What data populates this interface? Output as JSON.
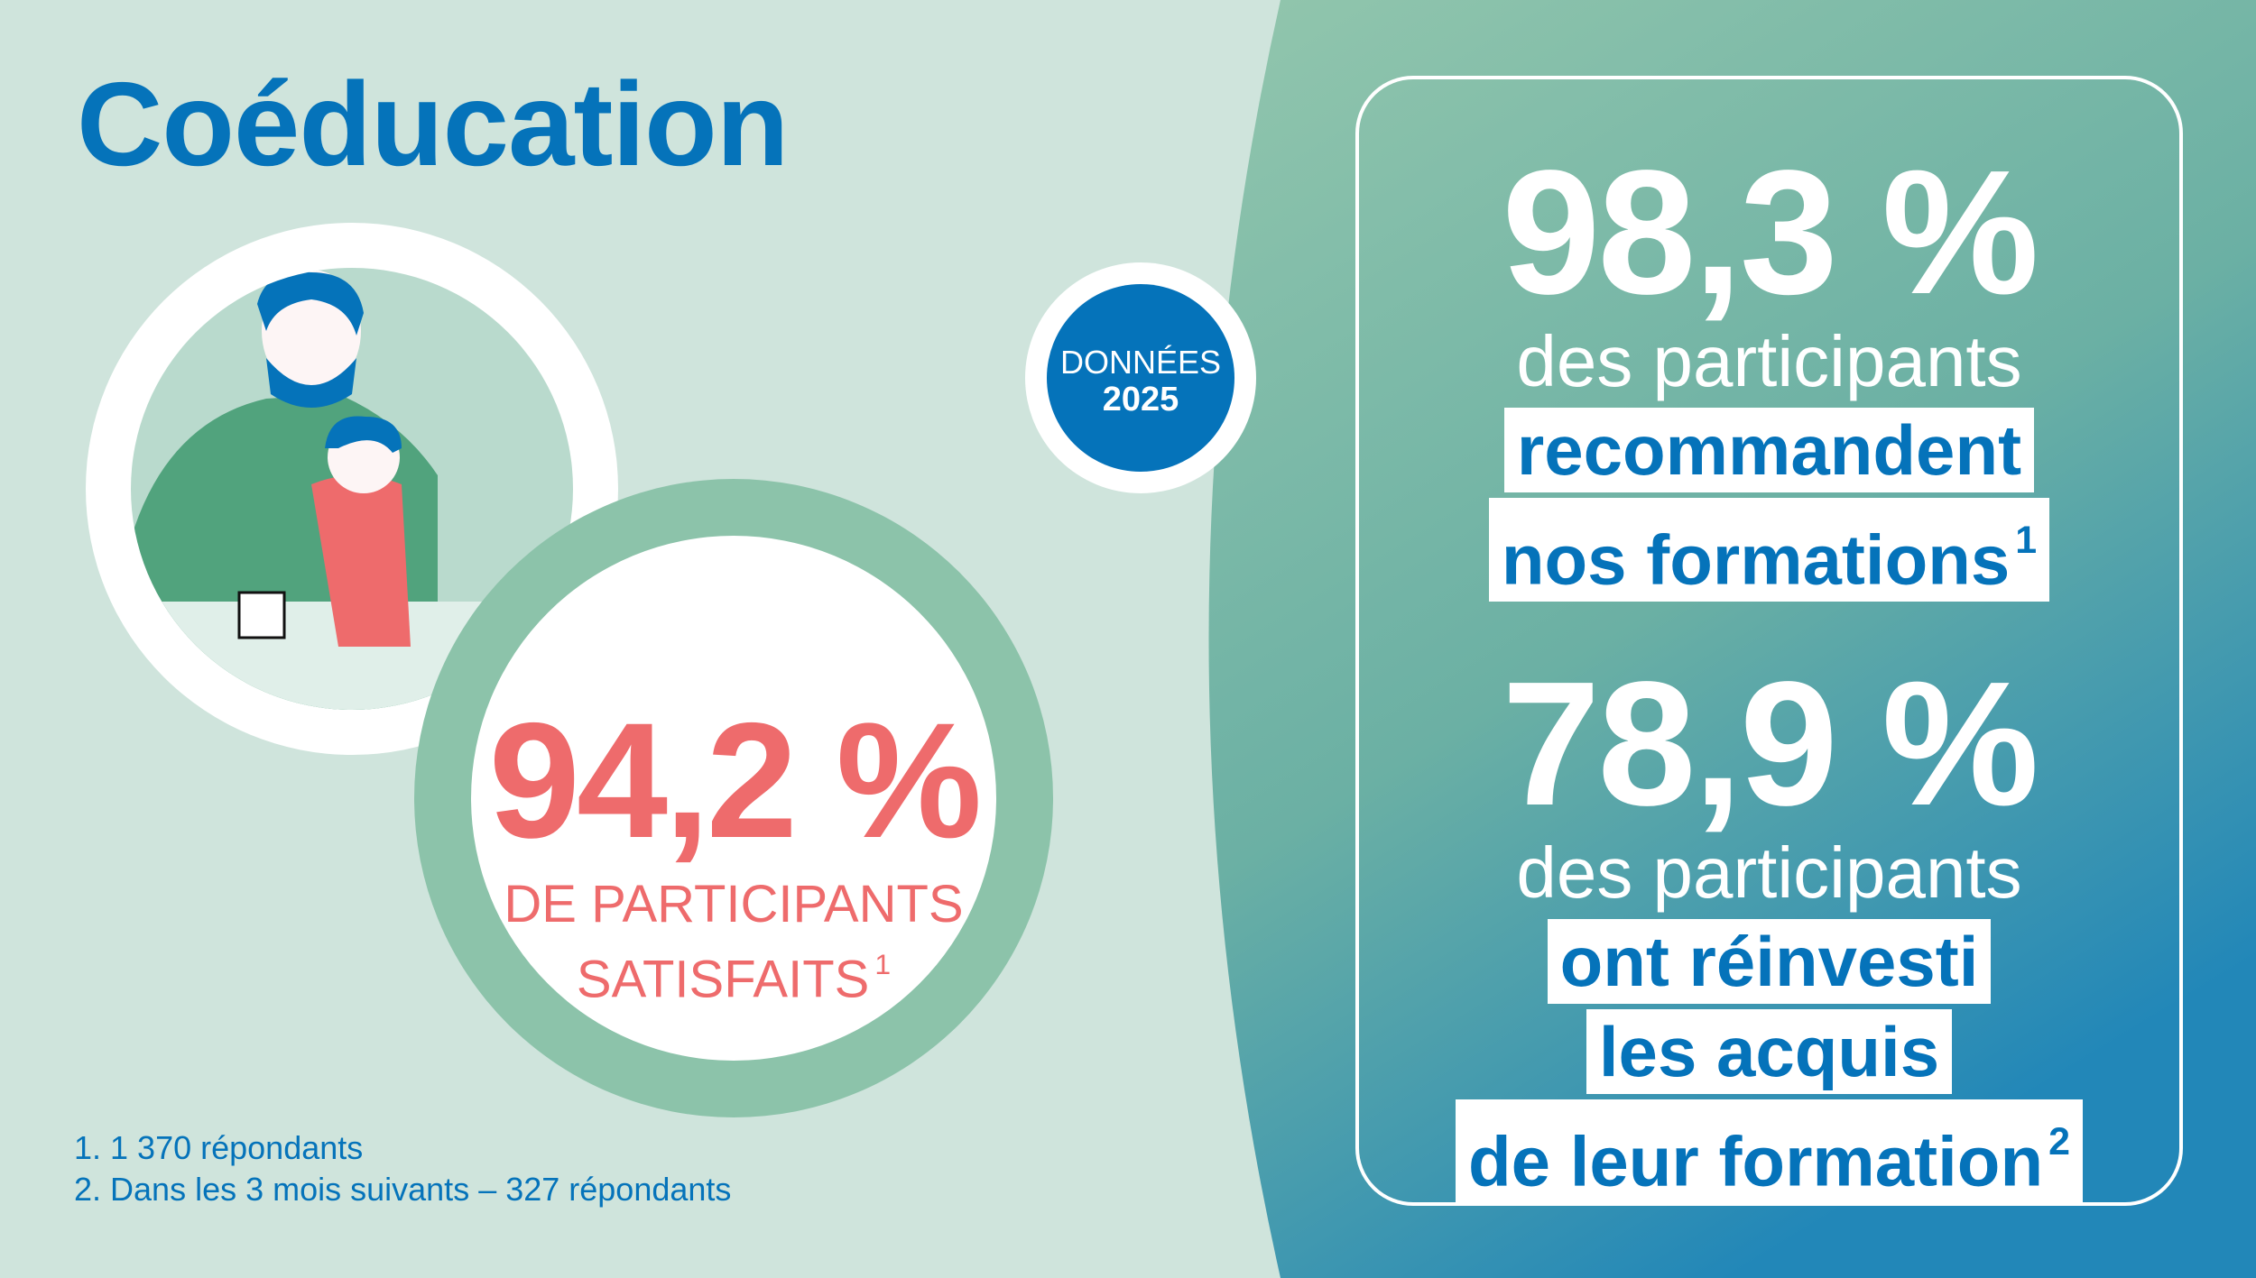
{
  "title": "Coéducation",
  "badge": {
    "line1": "DONNÉES",
    "line2": "2025"
  },
  "left_stat": {
    "value": "94,2 %",
    "label_line1": "DE PARTICIPANTS",
    "label_line2": "SATISFAITS",
    "footnote": "1"
  },
  "right_stats": [
    {
      "value": "98,3 %",
      "subtitle": "des participants",
      "highlight": [
        "recommandent",
        "nos formations"
      ],
      "footnote": "1"
    },
    {
      "value": "78,9 %",
      "subtitle": "des participants",
      "highlight": [
        "ont réinvesti",
        "les acquis",
        "de leur formation"
      ],
      "footnote": "2"
    }
  ],
  "footnotes": [
    "1. 1 370 répondants",
    "2. Dans les 3 mois suivants – 327 répondants"
  ],
  "colors": {
    "background": "#cfe4dc",
    "brand_blue": "#0573ba",
    "coral": "#ee6b6c",
    "ring_green": "#8cc3aa",
    "gradient_top": "#92c6ad",
    "gradient_bottom": "#2287b8"
  },
  "illustration": "father-helping-child-with-homework"
}
